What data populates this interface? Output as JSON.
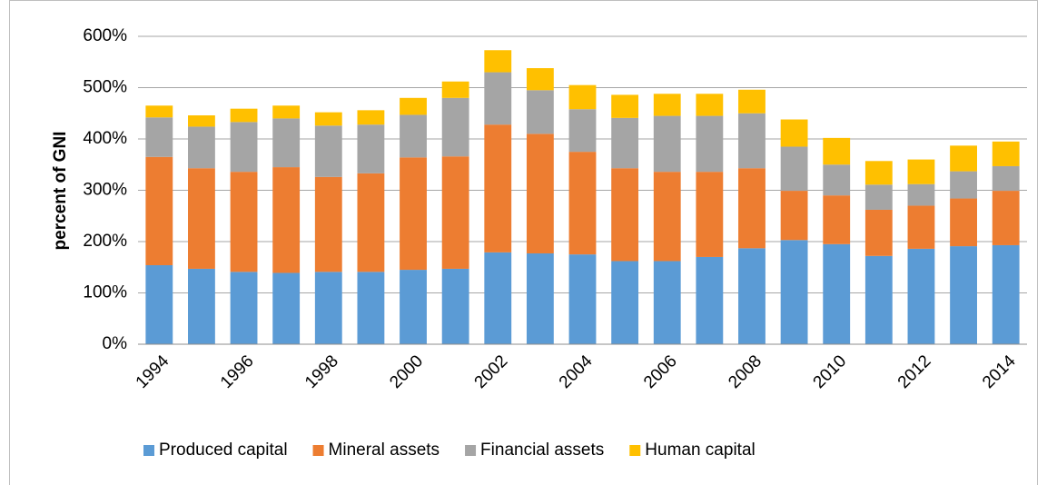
{
  "chart_data": {
    "type": "stacked_bar",
    "y_label": "percent of GNI",
    "categories": [
      "1994",
      null,
      "1996",
      null,
      "1998",
      null,
      "2000",
      null,
      "2002",
      null,
      "2004",
      null,
      "2006",
      null,
      "2008",
      null,
      "2010",
      null,
      "2012",
      null,
      "2014"
    ],
    "series": [
      {
        "name": "Produced capital",
        "color": "#5b9bd5",
        "values": [
          154,
          147,
          141,
          139,
          141,
          141,
          145,
          147,
          179,
          177,
          175,
          162,
          162,
          170,
          187,
          203,
          195,
          172,
          186,
          191,
          193
        ]
      },
      {
        "name": "Mineral assets",
        "color": "#ed7d31",
        "values": [
          211,
          196,
          195,
          206,
          185,
          192,
          219,
          219,
          249,
          233,
          200,
          181,
          174,
          166,
          156,
          96,
          95,
          90,
          84,
          93,
          106
        ]
      },
      {
        "name": "Financial assets",
        "color": "#a5a5a5",
        "values": [
          77,
          81,
          97,
          95,
          100,
          95,
          83,
          114,
          102,
          85,
          83,
          98,
          109,
          109,
          107,
          86,
          60,
          49,
          42,
          53,
          48
        ]
      },
      {
        "name": "Human capital",
        "color": "#ffc000",
        "values": [
          23,
          22,
          26,
          25,
          26,
          28,
          33,
          32,
          43,
          43,
          47,
          45,
          43,
          43,
          46,
          53,
          52,
          46,
          48,
          50,
          48
        ]
      }
    ],
    "ylim": [
      0,
      600
    ],
    "yticks": [
      {
        "value": 0,
        "label": "0%"
      },
      {
        "value": 100,
        "label": "100%"
      },
      {
        "value": 200,
        "label": "200%"
      },
      {
        "value": 300,
        "label": "300%"
      },
      {
        "value": 400,
        "label": "400%"
      },
      {
        "value": 500,
        "label": "500%"
      },
      {
        "value": 600,
        "label": "600%"
      }
    ],
    "grid": true,
    "legend": "bottom"
  }
}
